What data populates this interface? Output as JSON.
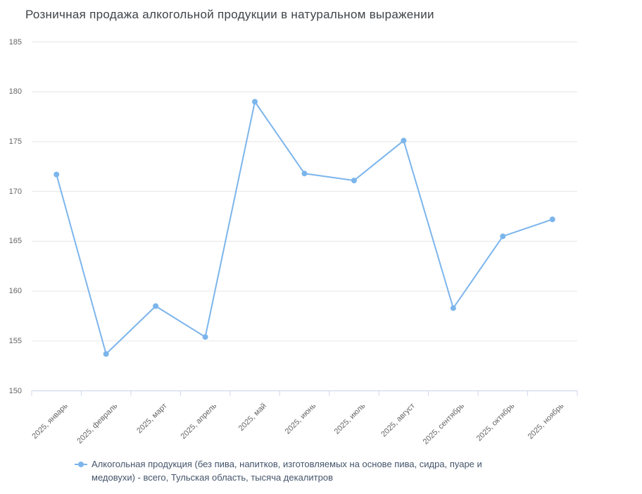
{
  "chart": {
    "title": "Розничная продажа алкогольной продукции в натуральном выражении",
    "legend": {
      "label": "Алкогольная продукция (без пива, напитков, изготовляемых на основе пива, сидра, пуаре и медовухи) - всего, Тульская область, тысяча декалитров"
    }
  },
  "chart_data": {
    "type": "line",
    "title": "Розничная продажа алкогольной продукции в натуральном выражении",
    "categories": [
      "2025, январь",
      "2025, февраль",
      "2025, март",
      "2025, апрель",
      "2025, май",
      "2025, июнь",
      "2025, июль",
      "2025, август",
      "2025, сентябрь",
      "2025, октябрь",
      "2025, ноябрь"
    ],
    "series": [
      {
        "name": "Алкогольная продукция (без пива, напитков, изготовляемых на основе пива, сидра, пуаре и медовухи) - всего, Тульская область, тысяча декалитров",
        "values": [
          171.7,
          153.7,
          158.5,
          155.4,
          179.0,
          171.8,
          171.1,
          175.1,
          158.3,
          165.5,
          167.2
        ],
        "color": "#7cb5ec"
      }
    ],
    "ylim": [
      150,
      185
    ],
    "yticks": [
      150,
      155,
      160,
      165,
      170,
      175,
      180,
      185
    ],
    "grid": true,
    "legend_position": "bottom"
  },
  "colors": {
    "accent": "#7cb5ec",
    "grid": "#e6e6e6",
    "axis_line": "#ccd6eb",
    "tick_label": "#666666",
    "title": "#3e4347",
    "legend_text": "#44546a",
    "background": "#ffffff"
  }
}
